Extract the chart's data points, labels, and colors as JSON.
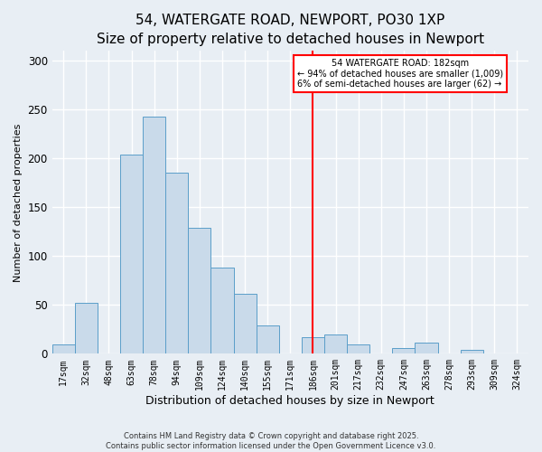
{
  "title": "54, WATERGATE ROAD, NEWPORT, PO30 1XP",
  "subtitle": "Size of property relative to detached houses in Newport",
  "xlabel": "Distribution of detached houses by size in Newport",
  "ylabel": "Number of detached properties",
  "bar_labels": [
    "17sqm",
    "32sqm",
    "48sqm",
    "63sqm",
    "78sqm",
    "94sqm",
    "109sqm",
    "124sqm",
    "140sqm",
    "155sqm",
    "171sqm",
    "186sqm",
    "201sqm",
    "217sqm",
    "232sqm",
    "247sqm",
    "263sqm",
    "278sqm",
    "293sqm",
    "309sqm",
    "324sqm"
  ],
  "bar_values": [
    10,
    52,
    0,
    204,
    243,
    185,
    129,
    88,
    61,
    29,
    0,
    17,
    20,
    10,
    0,
    6,
    11,
    0,
    4,
    0,
    0
  ],
  "bar_color": "#c9daea",
  "bar_edge_color": "#5b9ec9",
  "vline_x_label": "186sqm",
  "vline_color": "red",
  "annotation_title": "54 WATERGATE ROAD: 182sqm",
  "annotation_line1": "← 94% of detached houses are smaller (1,009)",
  "annotation_line2": "6% of semi-detached houses are larger (62) →",
  "annotation_box_color": "white",
  "annotation_box_edge": "red",
  "ylim": [
    0,
    310
  ],
  "yticks": [
    0,
    50,
    100,
    150,
    200,
    250,
    300
  ],
  "footer1": "Contains HM Land Registry data © Crown copyright and database right 2025.",
  "footer2": "Contains public sector information licensed under the Open Government Licence v3.0.",
  "background_color": "#e8eef4",
  "grid_color": "#ffffff",
  "title_fontsize": 11,
  "subtitle_fontsize": 9.5,
  "ylabel_fontsize": 8,
  "xlabel_fontsize": 9
}
